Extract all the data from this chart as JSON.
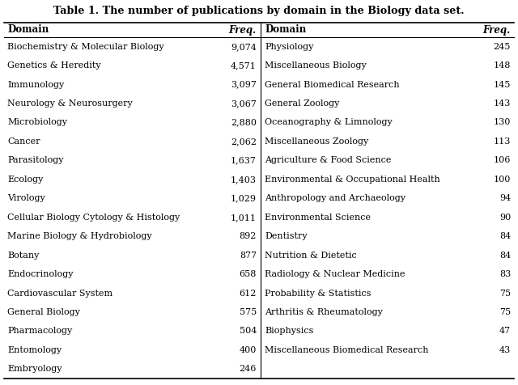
{
  "title": "Table 1. The number of publications by domain in the Biology data set.",
  "left_data": [
    [
      "Biochemistry & Molecular Biology",
      "9,074"
    ],
    [
      "Genetics & Heredity",
      "4,571"
    ],
    [
      "Immunology",
      "3,097"
    ],
    [
      "Neurology & Neurosurgery",
      "3,067"
    ],
    [
      "Microbiology",
      "2,880"
    ],
    [
      "Cancer",
      "2,062"
    ],
    [
      "Parasitology",
      "1,637"
    ],
    [
      "Ecology",
      "1,403"
    ],
    [
      "Virology",
      "1,029"
    ],
    [
      "Cellular Biology Cytology & Histology",
      "1,011"
    ],
    [
      "Marine Biology & Hydrobiology",
      "892"
    ],
    [
      "Botany",
      "877"
    ],
    [
      "Endocrinology",
      "658"
    ],
    [
      "Cardiovascular System",
      "612"
    ],
    [
      "General Biology",
      "575"
    ],
    [
      "Pharmacology",
      "504"
    ],
    [
      "Entomology",
      "400"
    ],
    [
      "Embryology",
      "246"
    ]
  ],
  "right_data": [
    [
      "Physiology",
      "245"
    ],
    [
      "Miscellaneous Biology",
      "148"
    ],
    [
      "General Biomedical Research",
      "145"
    ],
    [
      "General Zoology",
      "143"
    ],
    [
      "Oceanography & Limnology",
      "130"
    ],
    [
      "Miscellaneous Zoology",
      "113"
    ],
    [
      "Agriculture & Food Science",
      "106"
    ],
    [
      "Environmental & Occupational Health",
      "100"
    ],
    [
      "Anthropology and Archaeology",
      "94"
    ],
    [
      "Environmental Science",
      "90"
    ],
    [
      "Dentistry",
      "84"
    ],
    [
      "Nutrition & Dietetic",
      "84"
    ],
    [
      "Radiology & Nuclear Medicine",
      "83"
    ],
    [
      "Probability & Statistics",
      "75"
    ],
    [
      "Arthritis & Rheumatology",
      "75"
    ],
    [
      "Biophysics",
      "47"
    ],
    [
      "Miscellaneous Biomedical Research",
      "43"
    ],
    [
      "",
      ""
    ]
  ],
  "bg_color": "#ffffff",
  "text_color": "#000000",
  "font_size": 8.0,
  "title_font_size": 9.2,
  "header_font_size": 8.5
}
